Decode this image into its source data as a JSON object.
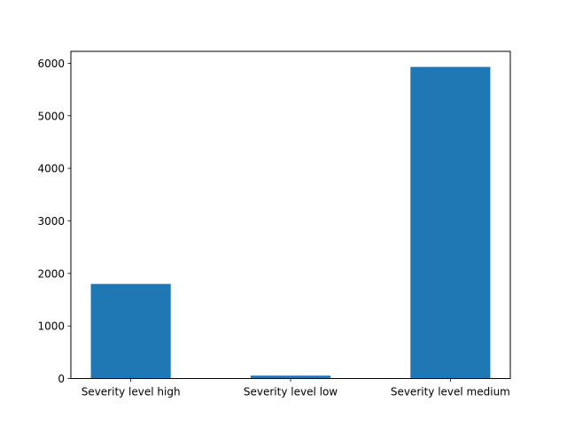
{
  "chart_data": {
    "type": "bar",
    "categories": [
      "Severity level high",
      "Severity level low",
      "Severity level medium"
    ],
    "values": [
      1800,
      55,
      5930
    ],
    "yticks": [
      0,
      1000,
      2000,
      3000,
      4000,
      5000,
      6000
    ],
    "ytick_labels": [
      "0",
      "1000",
      "2000",
      "3000",
      "4000",
      "5000",
      "6000"
    ],
    "ylim": [
      0,
      6226
    ],
    "title": "",
    "xlabel": "",
    "ylabel": "",
    "grid": false,
    "bar_color": "#1f77b4"
  }
}
